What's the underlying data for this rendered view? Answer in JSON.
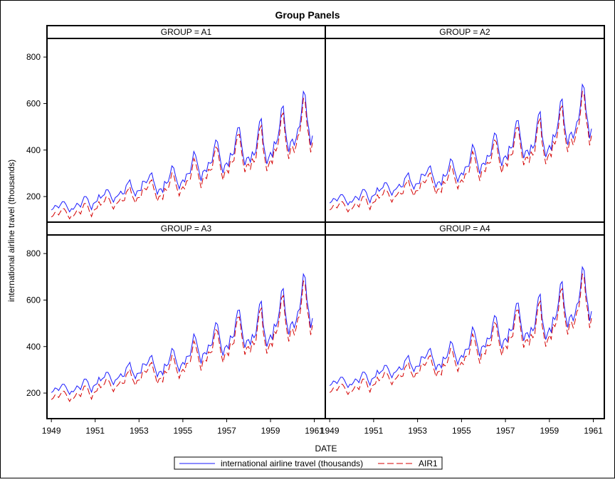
{
  "chart_data": {
    "type": "line",
    "title": "Group Panels",
    "xlabel": "DATE",
    "ylabel": "international airline travel (thousands)",
    "xlim": [
      1948.8,
      1961.5
    ],
    "ylim": [
      90,
      880
    ],
    "x_ticks": [
      1949,
      1951,
      1953,
      1955,
      1957,
      1959,
      1961
    ],
    "y_ticks": [
      200,
      400,
      600,
      800
    ],
    "legend": {
      "placement": "bottom-center",
      "entries": [
        "international airline travel (thousands)",
        "AIR1"
      ]
    },
    "series_styles": [
      {
        "name": "international airline travel (thousands)",
        "color": "#1a1aff",
        "dash": "solid"
      },
      {
        "name": "AIR1",
        "color": "#d40000",
        "dash": "dashed"
      }
    ],
    "x_start": "1949-01",
    "base_monthly": [
      112,
      118,
      132,
      129,
      121,
      135,
      148,
      148,
      136,
      119,
      104,
      118,
      115,
      126,
      141,
      135,
      125,
      149,
      170,
      170,
      158,
      133,
      114,
      140,
      145,
      150,
      178,
      163,
      172,
      178,
      199,
      199,
      184,
      162,
      146,
      166,
      171,
      180,
      193,
      181,
      183,
      218,
      230,
      242,
      209,
      191,
      172,
      194,
      196,
      196,
      236,
      235,
      229,
      243,
      264,
      272,
      237,
      211,
      180,
      201,
      204,
      188,
      235,
      227,
      234,
      264,
      302,
      293,
      259,
      229,
      203,
      229,
      242,
      233,
      267,
      269,
      270,
      315,
      364,
      347,
      312,
      274,
      237,
      278,
      284,
      277,
      317,
      313,
      318,
      374,
      413,
      405,
      355,
      306,
      271,
      306,
      315,
      301,
      356,
      348,
      355,
      422,
      465,
      467,
      404,
      347,
      305,
      336,
      340,
      318,
      362,
      348,
      363,
      435,
      491,
      505,
      404,
      359,
      310,
      337,
      360,
      342,
      406,
      396,
      420,
      472,
      548,
      559,
      463,
      407,
      362,
      405,
      417,
      391,
      419,
      461,
      472,
      535,
      622,
      606,
      508,
      461,
      390,
      432
    ],
    "panels": [
      {
        "label": "GROUP = A1",
        "series": [
          {
            "name": "international airline travel (thousands)",
            "offset": 30
          },
          {
            "name": "AIR1",
            "offset": 0
          }
        ]
      },
      {
        "label": "GROUP = A2",
        "series": [
          {
            "name": "international airline travel (thousands)",
            "offset": 60
          },
          {
            "name": "AIR1",
            "offset": 30
          }
        ]
      },
      {
        "label": "GROUP = A3",
        "series": [
          {
            "name": "international airline travel (thousands)",
            "offset": 90
          },
          {
            "name": "AIR1",
            "offset": 60
          }
        ]
      },
      {
        "label": "GROUP = A4",
        "series": [
          {
            "name": "international airline travel (thousands)",
            "offset": 120
          },
          {
            "name": "AIR1",
            "offset": 90
          }
        ]
      }
    ]
  }
}
